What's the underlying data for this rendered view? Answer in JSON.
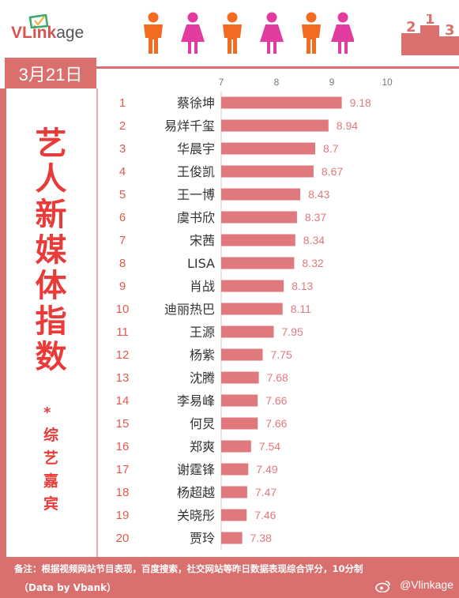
{
  "brand": {
    "v_part": "VLink",
    "k_part": "age"
  },
  "date": "3月21日",
  "title_chars": [
    "艺",
    "人",
    "新",
    "媒",
    "体",
    "指",
    "数"
  ],
  "title_star": "*",
  "subtitle_chars": [
    "综",
    "艺",
    "嘉",
    "宾"
  ],
  "footer": {
    "note": "备注：根据视频网站节目表现，百度搜索，社交网站等昨日数据表现综合评分，10分制",
    "source": "（Data by Vbank）",
    "handle": "@Vlinkage"
  },
  "colors": {
    "brand_red": "#d9706e",
    "bar": "#e0797e",
    "title": "#ea3b3b",
    "rank": "#e05a4e",
    "value": "#e0797e"
  },
  "chart_data": {
    "type": "bar",
    "orientation": "horizontal",
    "xlim": [
      7,
      10
    ],
    "xticks": [
      "7",
      "8",
      "9",
      "10"
    ],
    "ranks": [
      "1",
      "2",
      "3",
      "4",
      "5",
      "6",
      "7",
      "8",
      "9",
      "10",
      "11",
      "12",
      "13",
      "14",
      "15",
      "16",
      "17",
      "18",
      "19",
      "20"
    ],
    "categories": [
      "蔡徐坤",
      "易烊千玺",
      "华晨宇",
      "王俊凯",
      "王一博",
      "虞书欣",
      "宋茜",
      "LISA",
      "肖战",
      "迪丽热巴",
      "王源",
      "杨紫",
      "沈腾",
      "李易峰",
      "何炅",
      "郑爽",
      "谢霆锋",
      "杨超越",
      "关晓彤",
      "贾玲"
    ],
    "values": [
      9.18,
      8.94,
      8.7,
      8.67,
      8.43,
      8.37,
      8.34,
      8.32,
      8.13,
      8.11,
      7.95,
      7.75,
      7.68,
      7.66,
      7.66,
      7.54,
      7.49,
      7.47,
      7.46,
      7.38
    ],
    "value_labels": [
      "9.18",
      "8.94",
      "8.7",
      "8.67",
      "8.43",
      "8.37",
      "8.34",
      "8.32",
      "8.13",
      "8.11",
      "7.95",
      "7.75",
      "7.68",
      "7.66",
      "7.66",
      "7.54",
      "7.49",
      "7.47",
      "7.46",
      "7.38"
    ]
  }
}
